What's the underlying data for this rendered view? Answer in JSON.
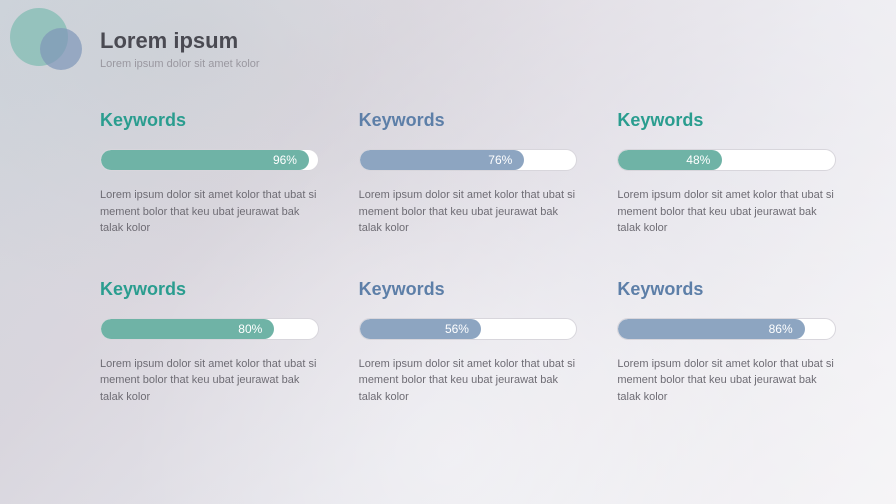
{
  "header": {
    "title": "Lorem ipsum",
    "subtitle": "Lorem ipsum dolor sit amet kolor",
    "title_color": "#4a4a52",
    "subtitle_color": "#9a98a0"
  },
  "logo": {
    "circle1_color": "#8fc0b9",
    "circle2_color": "#7f95b8"
  },
  "palette": {
    "teal": "#4fa999",
    "blue": "#8da5c1",
    "track_bg": "#ffffff",
    "track_border": "#d8d6dc",
    "heading_teal": "#2a9d8f",
    "heading_blue": "#5d7fa8"
  },
  "cards": [
    {
      "heading": "Keywords",
      "heading_color": "#2a9d8f",
      "percent": 96,
      "percent_label": "96%",
      "fill_color": "#6fb3a6",
      "description": "Lorem ipsum dolor sit amet kolor that ubat si mement bolor that keu ubat jeurawat bak talak kolor"
    },
    {
      "heading": "Keywords",
      "heading_color": "#5d7fa8",
      "percent": 76,
      "percent_label": "76%",
      "fill_color": "#8da5c1",
      "description": "Lorem ipsum dolor sit amet kolor that ubat si mement bolor that keu ubat jeurawat bak talak kolor"
    },
    {
      "heading": "Keywords",
      "heading_color": "#2a9d8f",
      "percent": 48,
      "percent_label": "48%",
      "fill_color": "#6fb3a6",
      "description": "Lorem ipsum dolor sit amet kolor that ubat si mement bolor that keu ubat jeurawat bak talak kolor"
    },
    {
      "heading": "Keywords",
      "heading_color": "#2a9d8f",
      "percent": 80,
      "percent_label": "80%",
      "fill_color": "#6fb3a6",
      "description": "Lorem ipsum dolor sit amet kolor that ubat si mement bolor that keu ubat jeurawat bak talak kolor"
    },
    {
      "heading": "Keywords",
      "heading_color": "#5d7fa8",
      "percent": 56,
      "percent_label": "56%",
      "fill_color": "#8da5c1",
      "description": "Lorem ipsum dolor sit amet kolor that ubat si mement bolor that keu ubat jeurawat bak talak kolor"
    },
    {
      "heading": "Keywords",
      "heading_color": "#5d7fa8",
      "percent": 86,
      "percent_label": "86%",
      "fill_color": "#8da5c1",
      "description": "Lorem ipsum dolor sit amet kolor that ubat si mement bolor that keu ubat jeurawat bak talak kolor"
    }
  ]
}
